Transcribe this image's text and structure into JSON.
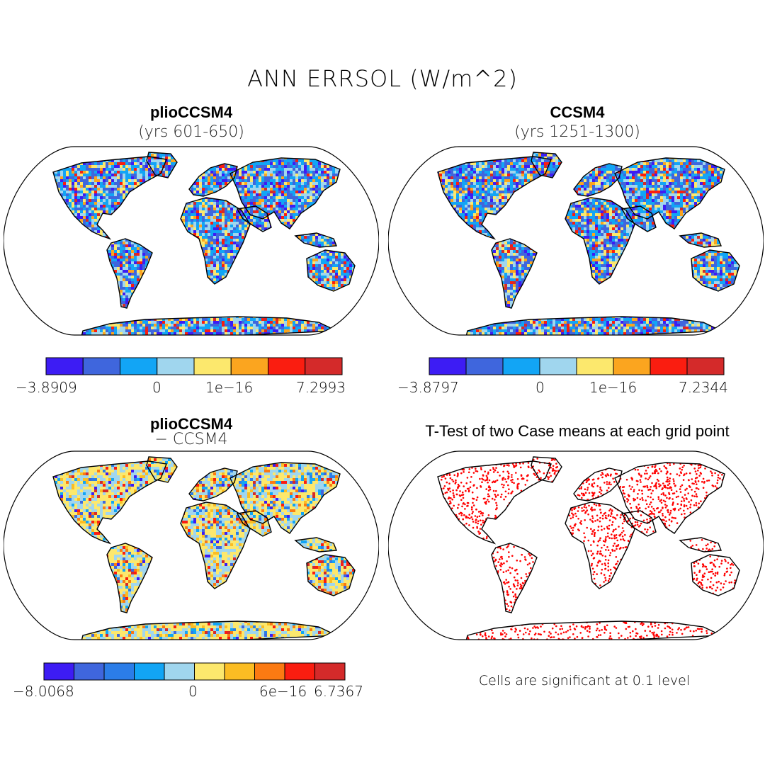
{
  "figure": {
    "title": "ANN ERRSOL (W/m^2)",
    "note": "Cells are significant at 0.1 level"
  },
  "panels": [
    {
      "id": "top-left",
      "title": "plioCCSM4",
      "subtitle": "(yrs 601-650)",
      "colorbar": {
        "colors": [
          "#3d1cf4",
          "#3f66dd",
          "#12a5f5",
          "#a0d6ee",
          "#fce86d",
          "#fba51f",
          "#fa1d10",
          "#d42a2a"
        ],
        "labels": [
          "−3.8909",
          "0",
          "1e−16",
          "7.2993"
        ]
      },
      "palette": [
        "#3d1cf4",
        "#3f66dd",
        "#12a5f5",
        "#a0d6ee",
        "#fce86d",
        "#fba51f",
        "#fa1d10",
        "#d42a2a"
      ]
    },
    {
      "id": "top-right",
      "title": "CCSM4",
      "subtitle": "(yrs 1251-1300)",
      "colorbar": {
        "colors": [
          "#3d1cf4",
          "#3f66dd",
          "#12a5f5",
          "#a0d6ee",
          "#fce86d",
          "#fba51f",
          "#fa1d10",
          "#d42a2a"
        ],
        "labels": [
          "−3.8797",
          "0",
          "1e−16",
          "7.2344"
        ]
      },
      "palette": [
        "#3d1cf4",
        "#3f66dd",
        "#12a5f5",
        "#a0d6ee",
        "#fce86d",
        "#fba51f",
        "#fa1d10",
        "#d42a2a"
      ]
    },
    {
      "id": "bottom-left",
      "title": "plioCCSM4",
      "subtitle": "− CCSM4",
      "colorbar": {
        "colors": [
          "#3d1cf4",
          "#3f66dd",
          "#2b7de8",
          "#12a5f5",
          "#a0d6ee",
          "#fce86d",
          "#fbbd23",
          "#fb7a12",
          "#fa1d10",
          "#d42a2a"
        ],
        "labels": [
          "−8.0068",
          "0",
          "6e−16",
          "6.7367"
        ]
      },
      "palette": [
        "#3d1cf4",
        "#3f66dd",
        "#2b7de8",
        "#12a5f5",
        "#a0d6ee",
        "#fce86d",
        "#fbbd23",
        "#fb7a12",
        "#fa1d10",
        "#d42a2a"
      ]
    },
    {
      "id": "bottom-right",
      "title": "T-Test of two Case means at each grid point",
      "subtitle": "",
      "palette": [
        "#ff0000"
      ]
    }
  ]
}
